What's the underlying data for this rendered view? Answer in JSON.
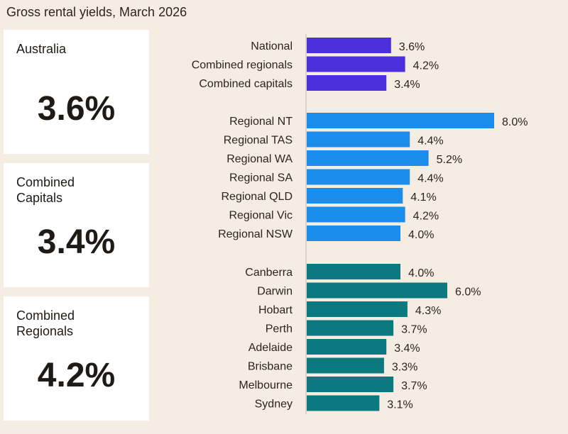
{
  "title": "Gross rental yields, March 2026",
  "cards": [
    {
      "label": "Australia",
      "value": "3.6%"
    },
    {
      "label": "Combined\nCapitals",
      "value": "3.4%"
    },
    {
      "label": "Combined\nRegionals",
      "value": "4.2%"
    }
  ],
  "chart_data": {
    "type": "bar",
    "orientation": "horizontal",
    "title": "Gross rental yields, March 2026",
    "categories": [
      "National",
      "Combined regionals",
      "Combined capitals",
      "Regional NT",
      "Regional TAS",
      "Regional WA",
      "Regional SA",
      "Regional QLD",
      "Regional Vic",
      "Regional NSW",
      "Canberra",
      "Darwin",
      "Hobart",
      "Perth",
      "Adelaide",
      "Brisbane",
      "Melbourne",
      "Sydney"
    ],
    "values": [
      3.6,
      4.2,
      3.4,
      8.0,
      4.4,
      5.2,
      4.4,
      4.1,
      4.2,
      4.0,
      4.0,
      6.0,
      4.3,
      3.7,
      3.4,
      3.3,
      3.7,
      3.1
    ],
    "labels": [
      "3.6%",
      "4.2%",
      "3.4%",
      "8.0%",
      "4.4%",
      "5.2%",
      "4.4%",
      "4.1%",
      "4.2%",
      "4.0%",
      "4.0%",
      "6.0%",
      "4.3%",
      "3.7%",
      "3.4%",
      "3.3%",
      "3.7%",
      "3.1%"
    ],
    "groups": [
      0,
      0,
      0,
      1,
      1,
      1,
      1,
      1,
      1,
      1,
      2,
      2,
      2,
      2,
      2,
      2,
      2,
      2
    ],
    "group_colors": [
      "#4b2fdc",
      "#1a8ded",
      "#0a7a80"
    ],
    "unit": "%",
    "xlim": [
      0,
      8
    ],
    "grid": false,
    "legend": "none"
  }
}
